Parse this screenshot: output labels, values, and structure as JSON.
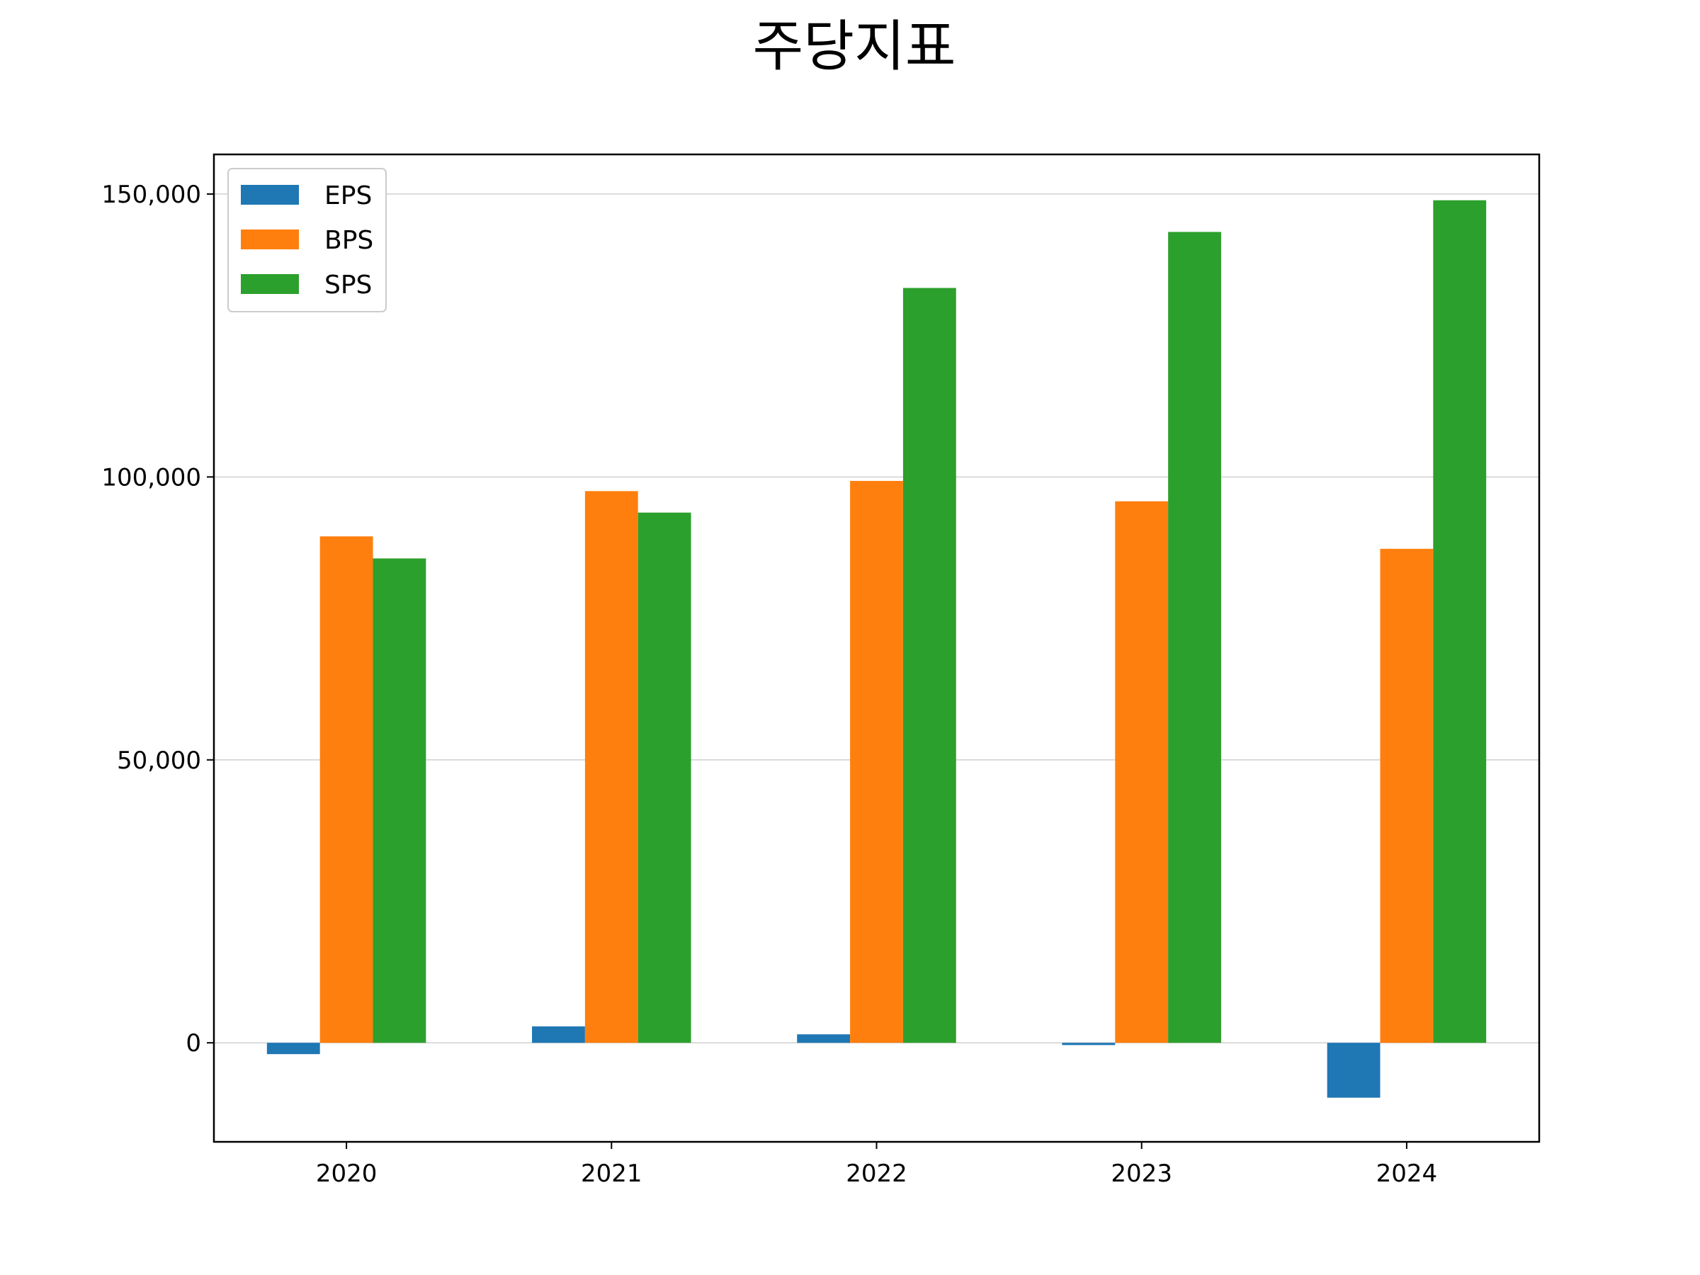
{
  "chart_data": {
    "type": "bar",
    "title": "주당지표",
    "xlabel": "",
    "ylabel": "",
    "categories": [
      "2020",
      "2021",
      "2022",
      "2023",
      "2024"
    ],
    "series": [
      {
        "name": "EPS",
        "color": "#1f77b4",
        "values": [
          -2000,
          2900,
          1500,
          -400,
          -9700
        ]
      },
      {
        "name": "BPS",
        "color": "#ff7f0e",
        "values": [
          89500,
          97500,
          99300,
          95700,
          87300
        ]
      },
      {
        "name": "SPS",
        "color": "#2ca02c",
        "values": [
          85600,
          93700,
          133400,
          143300,
          148900
        ]
      }
    ],
    "ylim": [
      -17500,
      157000
    ],
    "yticks": [
      0,
      50000,
      100000,
      150000
    ],
    "ytick_labels": [
      "0",
      "50,000",
      "100,000",
      "150,000"
    ],
    "grid": "y",
    "legend_position": "upper-left"
  }
}
